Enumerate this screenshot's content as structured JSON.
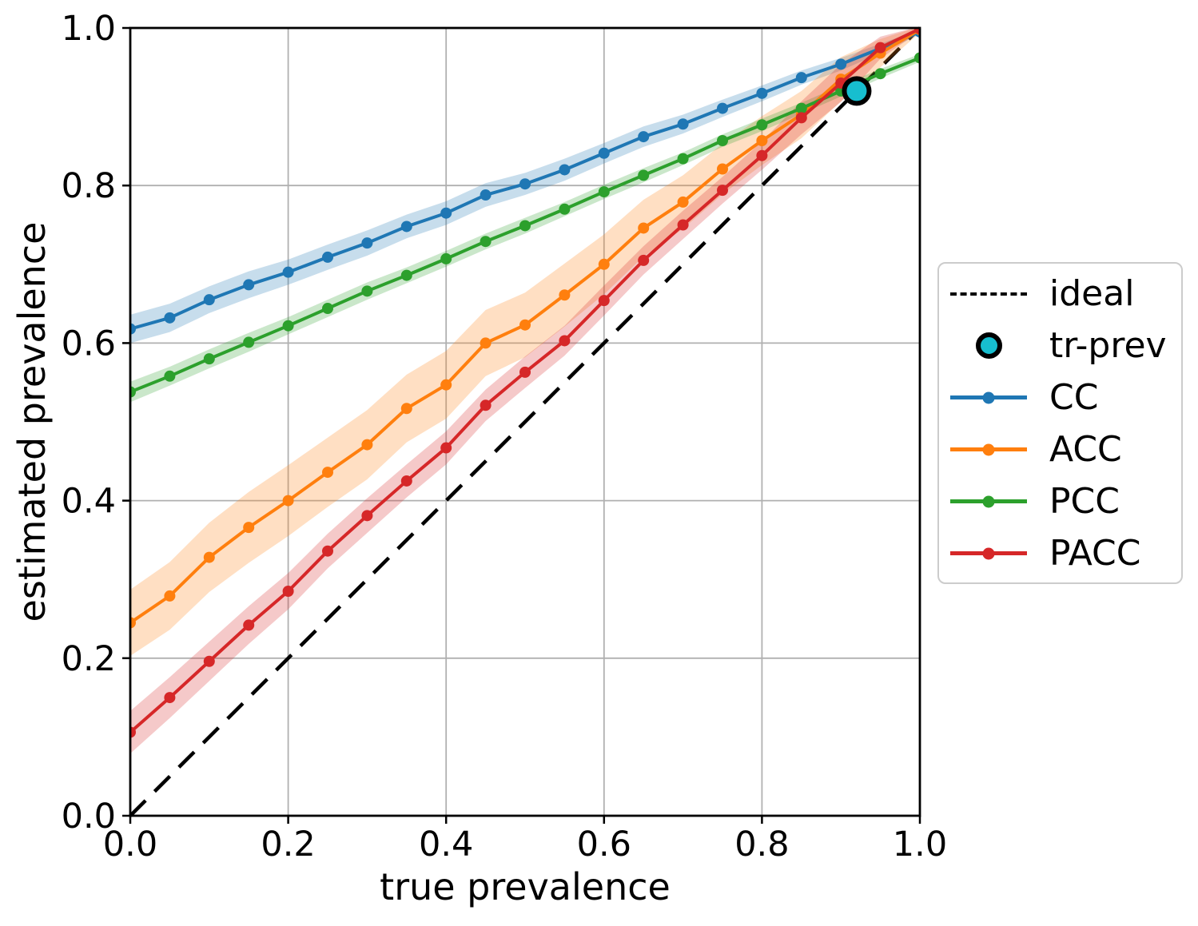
{
  "figure": {
    "background": "#ffffff",
    "grid_color": "#b0b0b0",
    "spine_color": "#000000"
  },
  "legend": {
    "items": [
      {
        "label": "ideal",
        "type": "dashed",
        "color": "#000000"
      },
      {
        "label": "tr-prev",
        "type": "circle",
        "color": "#17becf",
        "edge": "#000000"
      },
      {
        "label": "CC",
        "type": "line",
        "color": "#1f77b4"
      },
      {
        "label": "ACC",
        "type": "line",
        "color": "#ff7f0e"
      },
      {
        "label": "PCC",
        "type": "line",
        "color": "#2ca02c"
      },
      {
        "label": "PACC",
        "type": "line",
        "color": "#d62728"
      }
    ]
  },
  "chart_data": {
    "type": "line",
    "title": "",
    "xlabel": "true prevalence",
    "ylabel": "estimated prevalence",
    "xlim": [
      0,
      1
    ],
    "ylim": [
      0,
      1
    ],
    "grid": true,
    "legend_position": "outside-right",
    "xticks": [
      0.0,
      0.2,
      0.4,
      0.6,
      0.8,
      1.0
    ],
    "yticks": [
      0.0,
      0.2,
      0.4,
      0.6,
      0.8,
      1.0
    ],
    "xticklabels": [
      "0.0",
      "0.2",
      "0.4",
      "0.6",
      "0.8",
      "1.0"
    ],
    "yticklabels": [
      "0.0",
      "0.2",
      "0.4",
      "0.6",
      "0.8",
      "1.0"
    ],
    "x": [
      0.0,
      0.05,
      0.1,
      0.15,
      0.2,
      0.25,
      0.3,
      0.35,
      0.4,
      0.45,
      0.5,
      0.55,
      0.6,
      0.65,
      0.7,
      0.75,
      0.8,
      0.85,
      0.9,
      0.95,
      1.0
    ],
    "series": [
      {
        "name": "CC",
        "color": "#1f77b4",
        "values": [
          0.618,
          0.632,
          0.655,
          0.674,
          0.69,
          0.709,
          0.727,
          0.748,
          0.765,
          0.788,
          0.802,
          0.82,
          0.841,
          0.862,
          0.878,
          0.898,
          0.917,
          0.937,
          0.954,
          0.974,
          0.995
        ],
        "band": [
          0.018,
          0.018,
          0.017,
          0.017,
          0.016,
          0.016,
          0.016,
          0.015,
          0.015,
          0.015,
          0.014,
          0.014,
          0.013,
          0.013,
          0.012,
          0.011,
          0.01,
          0.009,
          0.008,
          0.006,
          0.003
        ]
      },
      {
        "name": "ACC",
        "color": "#ff7f0e",
        "values": [
          0.245,
          0.279,
          0.328,
          0.366,
          0.4,
          0.436,
          0.471,
          0.517,
          0.547,
          0.6,
          0.623,
          0.661,
          0.7,
          0.746,
          0.779,
          0.821,
          0.857,
          0.89,
          0.935,
          0.968,
          0.998
        ],
        "band": [
          0.042,
          0.043,
          0.044,
          0.045,
          0.045,
          0.044,
          0.044,
          0.043,
          0.043,
          0.042,
          0.041,
          0.04,
          0.038,
          0.036,
          0.034,
          0.032,
          0.031,
          0.03,
          0.028,
          0.018,
          0.004
        ]
      },
      {
        "name": "PCC",
        "color": "#2ca02c",
        "values": [
          0.538,
          0.558,
          0.58,
          0.601,
          0.622,
          0.644,
          0.666,
          0.686,
          0.707,
          0.729,
          0.749,
          0.77,
          0.792,
          0.813,
          0.834,
          0.857,
          0.877,
          0.898,
          0.92,
          0.942,
          0.962
        ],
        "band": [
          0.013,
          0.012,
          0.012,
          0.012,
          0.011,
          0.011,
          0.011,
          0.01,
          0.01,
          0.01,
          0.01,
          0.009,
          0.009,
          0.009,
          0.008,
          0.008,
          0.008,
          0.007,
          0.007,
          0.006,
          0.005
        ]
      },
      {
        "name": "PACC",
        "color": "#d62728",
        "values": [
          0.106,
          0.15,
          0.196,
          0.242,
          0.285,
          0.336,
          0.381,
          0.425,
          0.467,
          0.521,
          0.563,
          0.603,
          0.654,
          0.705,
          0.75,
          0.794,
          0.838,
          0.886,
          0.93,
          0.975,
          0.999
        ],
        "band": [
          0.027,
          0.026,
          0.025,
          0.024,
          0.023,
          0.022,
          0.022,
          0.021,
          0.021,
          0.02,
          0.02,
          0.019,
          0.019,
          0.018,
          0.018,
          0.017,
          0.018,
          0.021,
          0.024,
          0.014,
          0.003
        ]
      }
    ],
    "ideal": {
      "label": "ideal",
      "from": [
        0,
        0
      ],
      "to": [
        1,
        1
      ],
      "style": "dashed",
      "color": "#000000"
    },
    "tr_prev": {
      "label": "tr-prev",
      "x": 0.92,
      "y": 0.92,
      "color": "#17becf",
      "edge": "#000000"
    }
  }
}
